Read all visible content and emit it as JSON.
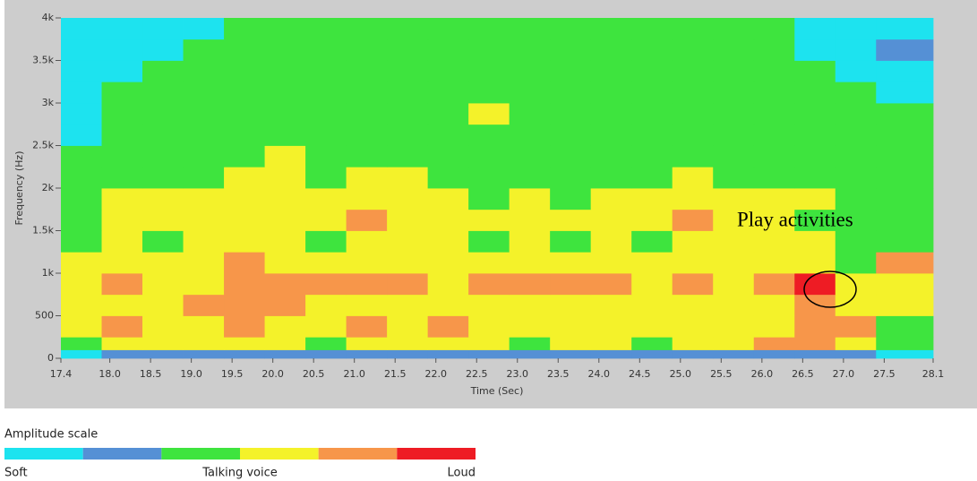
{
  "chart_data": {
    "type": "heatmap",
    "xlabel": "Time (Sec)",
    "ylabel": "Frequency (Hz)",
    "x": [
      17.4,
      17.9,
      18.4,
      18.9,
      19.4,
      19.9,
      20.4,
      20.9,
      21.4,
      21.9,
      22.4,
      22.9,
      23.4,
      23.9,
      24.4,
      24.9,
      25.4,
      25.9,
      26.4,
      26.9,
      27.4,
      28.1
    ],
    "y": [
      0,
      100,
      250,
      500,
      750,
      1000,
      1250,
      1500,
      1750,
      2000,
      2250,
      2500,
      2750,
      3000,
      3250,
      3500,
      3750,
      4000
    ],
    "values": [
      [
        1,
        2,
        2,
        2,
        2,
        2,
        2,
        2,
        2,
        2,
        2,
        2,
        2,
        2,
        2,
        2,
        2,
        2,
        2,
        2,
        1
      ],
      [
        3,
        4,
        4,
        4,
        4,
        4,
        3,
        4,
        4,
        4,
        4,
        3,
        4,
        4,
        3,
        4,
        4,
        5,
        5,
        4,
        3
      ],
      [
        4,
        5,
        4,
        4,
        5,
        4,
        4,
        5,
        4,
        5,
        4,
        4,
        4,
        4,
        4,
        4,
        4,
        4,
        5,
        5,
        3
      ],
      [
        4,
        4,
        4,
        5,
        5,
        5,
        4,
        4,
        4,
        4,
        4,
        4,
        4,
        4,
        4,
        4,
        4,
        4,
        5,
        4,
        4
      ],
      [
        4,
        5,
        4,
        4,
        5,
        5,
        5,
        5,
        5,
        4,
        5,
        5,
        5,
        5,
        4,
        5,
        4,
        5,
        6,
        4,
        4
      ],
      [
        4,
        4,
        4,
        4,
        5,
        4,
        4,
        4,
        4,
        4,
        4,
        4,
        4,
        4,
        4,
        4,
        4,
        4,
        4,
        3,
        5
      ],
      [
        3,
        4,
        3,
        4,
        4,
        4,
        3,
        4,
        4,
        4,
        3,
        4,
        3,
        4,
        3,
        4,
        4,
        4,
        4,
        3,
        3
      ],
      [
        3,
        4,
        4,
        4,
        4,
        4,
        4,
        5,
        4,
        4,
        4,
        4,
        4,
        4,
        4,
        5,
        4,
        4,
        3,
        3,
        3
      ],
      [
        3,
        4,
        4,
        4,
        4,
        4,
        4,
        4,
        4,
        4,
        3,
        4,
        3,
        4,
        4,
        4,
        4,
        4,
        4,
        3,
        3
      ],
      [
        3,
        3,
        3,
        3,
        4,
        4,
        3,
        4,
        4,
        3,
        3,
        3,
        3,
        3,
        3,
        4,
        3,
        3,
        3,
        3,
        3
      ],
      [
        3,
        3,
        3,
        3,
        3,
        4,
        3,
        3,
        3,
        3,
        3,
        3,
        3,
        3,
        3,
        3,
        3,
        3,
        3,
        3,
        3
      ],
      [
        1,
        3,
        3,
        3,
        3,
        3,
        3,
        3,
        3,
        3,
        3,
        3,
        3,
        3,
        3,
        3,
        3,
        3,
        3,
        3,
        3
      ],
      [
        1,
        3,
        3,
        3,
        3,
        3,
        3,
        3,
        3,
        3,
        4,
        3,
        3,
        3,
        3,
        3,
        3,
        3,
        3,
        3,
        3
      ],
      [
        1,
        3,
        3,
        3,
        3,
        3,
        3,
        3,
        3,
        3,
        3,
        3,
        3,
        3,
        3,
        3,
        3,
        3,
        3,
        3,
        1
      ],
      [
        1,
        1,
        3,
        3,
        3,
        3,
        3,
        3,
        3,
        3,
        3,
        3,
        3,
        3,
        3,
        3,
        3,
        3,
        3,
        1,
        1
      ],
      [
        1,
        1,
        1,
        3,
        3,
        3,
        3,
        3,
        3,
        3,
        3,
        3,
        3,
        3,
        3,
        3,
        3,
        3,
        1,
        1,
        2
      ],
      [
        1,
        1,
        1,
        1,
        3,
        3,
        3,
        3,
        3,
        3,
        3,
        3,
        3,
        3,
        3,
        3,
        3,
        3,
        1,
        1,
        1
      ]
    ],
    "colorscale": [
      "#1de3ef",
      "#5590d5",
      "#3ee43e",
      "#f4f22a",
      "#f7964a",
      "#ee1c24"
    ],
    "xlim": [
      17.4,
      28.1
    ],
    "ylim": [
      0,
      4000
    ],
    "xticks": [
      17.4,
      {
        "value": 18,
        "label": "18.0"
      },
      18.5,
      {
        "value": 19,
        "label": "19.0"
      },
      19.5,
      {
        "value": 20,
        "label": "20.0"
      },
      20.5,
      {
        "value": 21,
        "label": "21.0"
      },
      21.5,
      {
        "value": 22,
        "label": "22.0"
      },
      22.5,
      {
        "value": 23,
        "label": "23.0"
      },
      23.5,
      {
        "value": 24,
        "label": "24.0"
      },
      24.5,
      {
        "value": 25,
        "label": "25.0"
      },
      25.5,
      {
        "value": 26,
        "label": "26.0"
      },
      26.5,
      {
        "value": 27,
        "label": "27.0"
      },
      27.5,
      28.1
    ],
    "yticks": [
      0,
      500,
      {
        "value": 1000,
        "label": "1k"
      },
      {
        "value": 1500,
        "label": "1.5k"
      },
      {
        "value": 2000,
        "label": "2k"
      },
      {
        "value": 2500,
        "label": "2.5k"
      },
      {
        "value": 3000,
        "label": "3k"
      },
      {
        "value": 3500,
        "label": "3.5k"
      },
      {
        "value": 4000,
        "label": "4k"
      }
    ],
    "annotation": "Play activities",
    "legend": {
      "title": "Amplitude scale",
      "labels": [
        "Soft",
        "Talking voice",
        "Loud"
      ]
    }
  }
}
